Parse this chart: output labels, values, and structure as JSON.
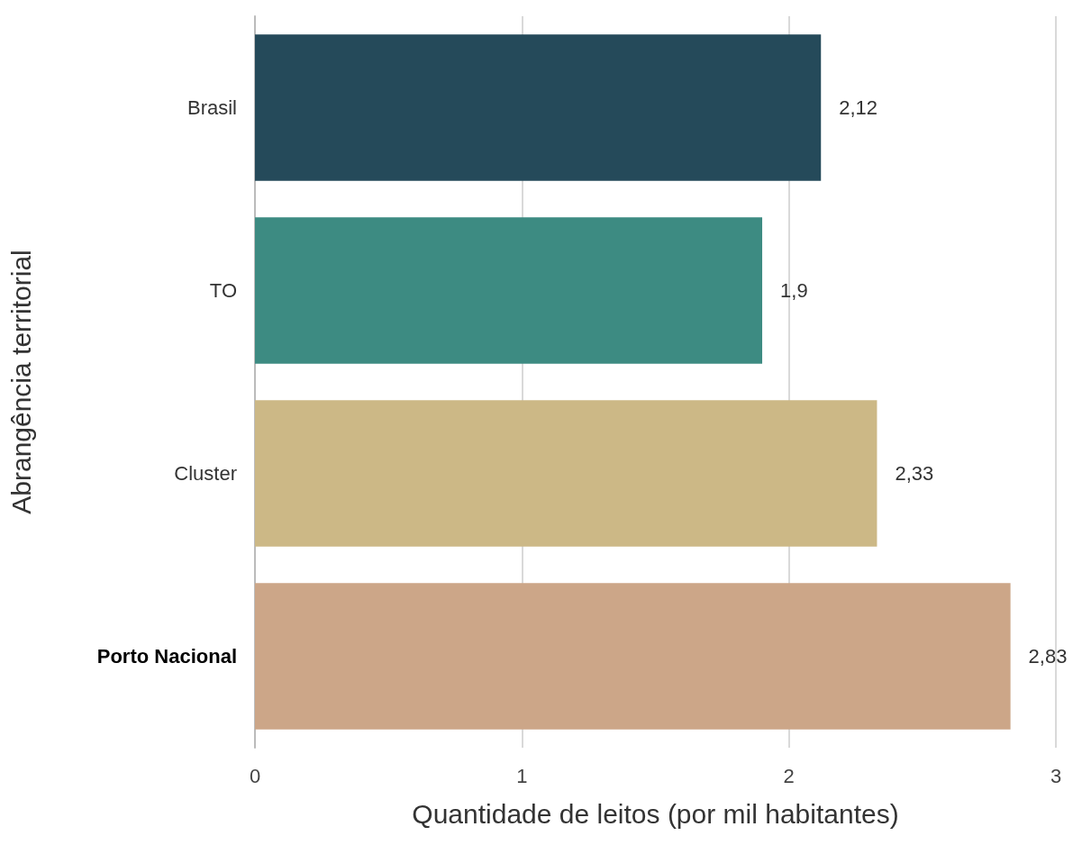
{
  "chart_data": {
    "type": "bar",
    "orientation": "horizontal",
    "xlabel": "Quantidade de leitos (por mil habitantes)",
    "ylabel": "Abrangência territorial",
    "categories": [
      "Brasil",
      "TO",
      "Cluster",
      "Porto Nacional"
    ],
    "values": [
      2.12,
      1.9,
      2.33,
      2.83
    ],
    "colors": [
      "#254a5a",
      "#3d8b82",
      "#ccb886",
      "#cca688"
    ],
    "value_labels": [
      "2,12",
      "1,9",
      "2,33",
      "2,83"
    ],
    "xlim": [
      0,
      3
    ],
    "xticks": [
      0,
      1,
      2,
      3
    ],
    "grid": "x"
  }
}
